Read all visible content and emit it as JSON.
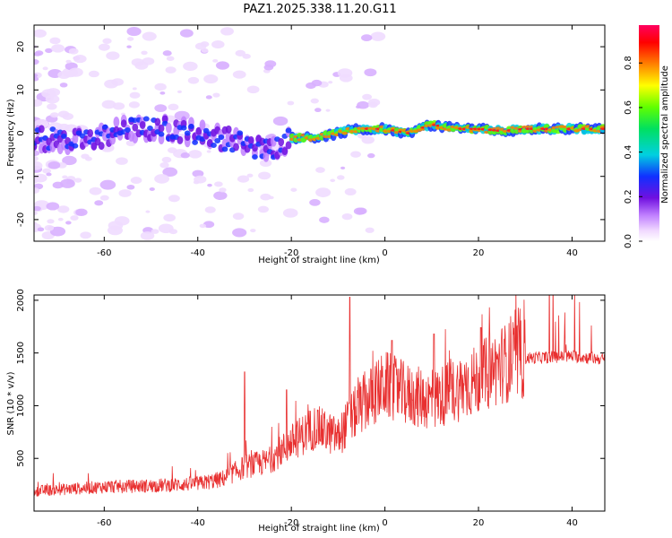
{
  "title": "PAZ1.2025.338.11.20.G11",
  "chart_data": [
    {
      "type": "heatmap",
      "xlabel": "Height of straight line (km)",
      "ylabel": "Frequency (Hz)",
      "xlim": [
        -75,
        47
      ],
      "ylim": [
        -25,
        25
      ],
      "x_ticks": [
        -60,
        -40,
        -20,
        0,
        20,
        40
      ],
      "y_ticks": [
        -20,
        -10,
        0,
        10,
        20
      ],
      "ridge": {
        "x": [
          -75,
          -65,
          -55,
          -45,
          -35,
          -25,
          -20,
          -15,
          -10,
          -5,
          0,
          5,
          10,
          15,
          20,
          25,
          30,
          35,
          40,
          47
        ],
        "y": [
          -1,
          -2,
          1,
          1,
          -1,
          -4,
          -1,
          -1,
          0,
          1,
          1,
          0,
          2,
          1,
          1,
          0.5,
          1,
          1,
          1,
          1
        ]
      },
      "colorbar": {
        "label": "Normalized spectral amplitude",
        "ticks": [
          "0.0",
          "0.2",
          "0.4",
          "0.6",
          "0.8"
        ],
        "range": [
          0,
          0.97
        ]
      }
    },
    {
      "type": "line",
      "xlabel": "Height of straight line (km)",
      "ylabel": "SNR (10 * v/v)",
      "xlim": [
        -75,
        47
      ],
      "ylim": [
        0,
        2050
      ],
      "x_ticks": [
        -60,
        -40,
        -20,
        0,
        20,
        40
      ],
      "y_ticks": [
        500,
        1000,
        1500,
        2000
      ],
      "color": "#e83030",
      "trend": {
        "x": [
          -75,
          -60,
          -50,
          -40,
          -35,
          -30,
          -25,
          -20,
          -15,
          -10,
          -7,
          -5,
          0,
          5,
          10,
          15,
          20,
          25,
          30,
          40,
          47
        ],
        "y": [
          190,
          230,
          240,
          260,
          300,
          420,
          470,
          650,
          800,
          700,
          900,
          1000,
          1200,
          1100,
          1050,
          1150,
          1250,
          1400,
          1450,
          1470,
          1440
        ]
      },
      "spikes": [
        {
          "x": -30,
          "y": 1320
        },
        {
          "x": -21,
          "y": 1150
        },
        {
          "x": -7.5,
          "y": 2030
        },
        {
          "x": 1.5,
          "y": 1620
        },
        {
          "x": 10.5,
          "y": 1680
        },
        {
          "x": 20.5,
          "y": 1740
        }
      ]
    }
  ]
}
